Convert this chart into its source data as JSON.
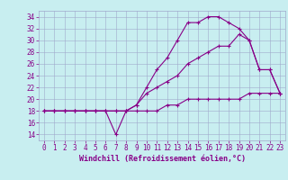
{
  "title": "",
  "xlabel": "Windchill (Refroidissement éolien,°C)",
  "background_color": "#c8eef0",
  "grid_color": "#a0a8cc",
  "line_color": "#880088",
  "x_values": [
    0,
    1,
    2,
    3,
    4,
    5,
    6,
    7,
    8,
    9,
    10,
    11,
    12,
    13,
    14,
    15,
    16,
    17,
    18,
    19,
    20,
    21,
    22,
    23
  ],
  "line1": [
    18,
    18,
    18,
    18,
    18,
    18,
    18,
    14,
    18,
    19,
    22,
    25,
    27,
    30,
    33,
    33,
    34,
    34,
    33,
    32,
    30,
    25,
    25,
    21
  ],
  "line2": [
    18,
    18,
    18,
    18,
    18,
    18,
    18,
    18,
    18,
    19,
    21,
    22,
    23,
    24,
    26,
    27,
    28,
    29,
    29,
    31,
    30,
    25,
    25,
    21
  ],
  "line3": [
    18,
    18,
    18,
    18,
    18,
    18,
    18,
    18,
    18,
    18,
    18,
    18,
    19,
    19,
    20,
    20,
    20,
    20,
    20,
    20,
    21,
    21,
    21,
    21
  ],
  "ylim": [
    13,
    35
  ],
  "yticks": [
    14,
    16,
    18,
    20,
    22,
    24,
    26,
    28,
    30,
    32,
    34
  ],
  "xlim": [
    -0.5,
    23.5
  ],
  "xticks": [
    0,
    1,
    2,
    3,
    4,
    5,
    6,
    7,
    8,
    9,
    10,
    11,
    12,
    13,
    14,
    15,
    16,
    17,
    18,
    19,
    20,
    21,
    22,
    23
  ],
  "tick_fontsize": 5.5,
  "xlabel_fontsize": 6.0,
  "marker_size": 3.0,
  "line_width": 0.8
}
